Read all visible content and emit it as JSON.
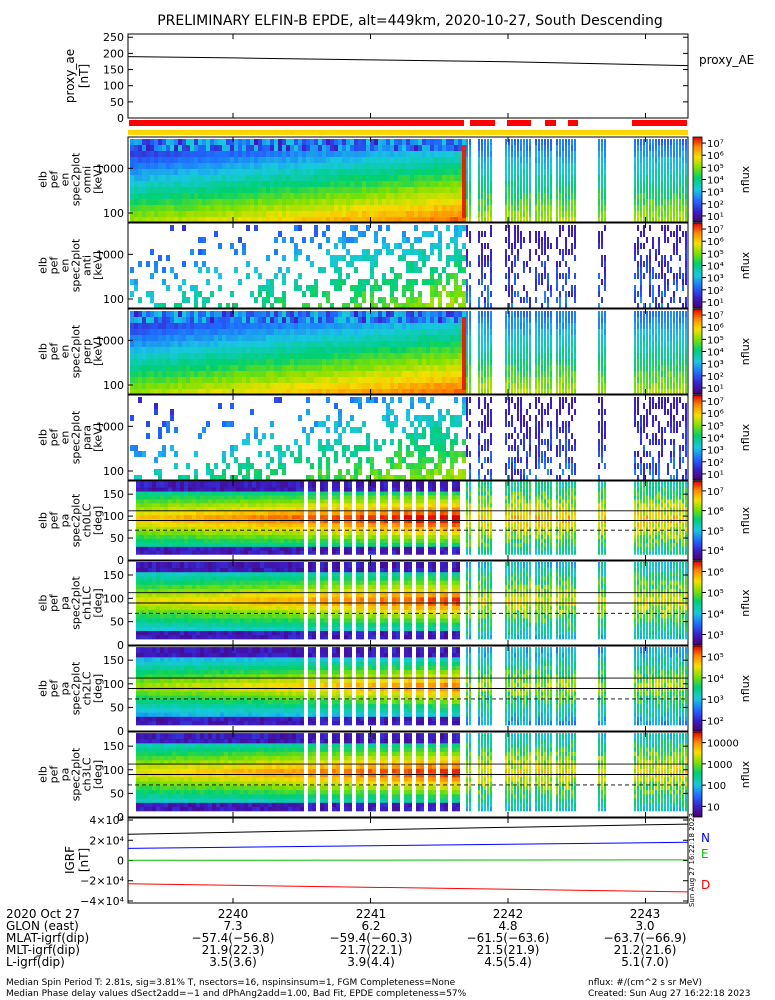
{
  "title": "PRELIMINARY ELFIN-B EPDE, alt=449km, 2020-10-27, South Descending",
  "colors": {
    "axis": "#000000",
    "status_red": "#ff0000",
    "status_yellow": "#ffd700",
    "igrf_n": "#0000ff",
    "igrf_e": "#00c000",
    "igrf_d": "#ff0000",
    "igrf_total": "#000000"
  },
  "chart_data": [
    {
      "type": "line",
      "panel": "proxy_ae",
      "ylabel": "proxy_ae [nT]",
      "series_label": "proxy_AE",
      "yticks": [
        "0",
        "50",
        "100",
        "150",
        "200",
        "250"
      ],
      "ylim": [
        0,
        260
      ],
      "x": [
        "2239.3",
        "2240",
        "2241",
        "2242",
        "2243",
        "2243.4"
      ],
      "values": [
        190,
        186,
        180,
        174,
        165,
        162
      ]
    },
    {
      "type": "heatmap",
      "panel": "elb pef en spec2plot omni",
      "ylabel": [
        "elb",
        "pef",
        "en",
        "spec2plot",
        "omni",
        "[keV]"
      ],
      "yticks": [
        "100",
        "1000"
      ],
      "ylog": true,
      "colorbar_label": "nflux",
      "colorbar_ticks": [
        "10¹",
        "10²",
        "10³",
        "10⁴",
        "10⁵",
        "10⁶",
        "10⁷"
      ]
    },
    {
      "type": "heatmap",
      "panel": "elb pef en spec2plot anti",
      "ylabel": [
        "elb",
        "pef",
        "en",
        "spec2plot",
        "anti",
        "[keV]"
      ],
      "yticks": [
        "100",
        "1000"
      ],
      "ylog": true,
      "colorbar_label": "nflux",
      "colorbar_ticks": [
        "10¹",
        "10²",
        "10³",
        "10⁴",
        "10⁵",
        "10⁶",
        "10⁷"
      ]
    },
    {
      "type": "heatmap",
      "panel": "elb pef en spec2plot perp",
      "ylabel": [
        "elb",
        "pef",
        "en",
        "spec2plot",
        "perp",
        "[keV]"
      ],
      "yticks": [
        "100",
        "1000"
      ],
      "ylog": true,
      "colorbar_label": "nflux",
      "colorbar_ticks": [
        "10¹",
        "10²",
        "10³",
        "10⁴",
        "10⁵",
        "10⁶",
        "10⁷"
      ]
    },
    {
      "type": "heatmap",
      "panel": "elb pef en spec2plot para",
      "ylabel": [
        "elb",
        "pef",
        "en",
        "spec2plot",
        "para",
        "[keV]"
      ],
      "yticks": [
        "100",
        "1000"
      ],
      "ylog": true,
      "colorbar_label": "nflux",
      "colorbar_ticks": [
        "10¹",
        "10²",
        "10³",
        "10⁴",
        "10⁵",
        "10⁶",
        "10⁷"
      ]
    },
    {
      "type": "heatmap",
      "panel": "elb pef pa spec2plot ch0LC",
      "ylabel": [
        "elb",
        "pef",
        "pa",
        "spec2plot",
        "ch0LC",
        "[deg]"
      ],
      "yticks": [
        "0",
        "50",
        "100",
        "150"
      ],
      "ylim": [
        0,
        180
      ],
      "colorbar_label": "nflux",
      "colorbar_ticks": [
        "10⁴",
        "10⁵",
        "10⁶",
        "10⁷"
      ]
    },
    {
      "type": "heatmap",
      "panel": "elb pef pa spec2plot ch1LC",
      "ylabel": [
        "elb",
        "pef",
        "pa",
        "spec2plot",
        "ch1LC",
        "[deg]"
      ],
      "yticks": [
        "0",
        "50",
        "100",
        "150"
      ],
      "ylim": [
        0,
        180
      ],
      "colorbar_label": "nflux",
      "colorbar_ticks": [
        "10³",
        "10⁴",
        "10⁵",
        "10⁶"
      ]
    },
    {
      "type": "heatmap",
      "panel": "elb pef pa spec2plot ch2LC",
      "ylabel": [
        "elb",
        "pef",
        "pa",
        "spec2plot",
        "ch2LC",
        "[deg]"
      ],
      "yticks": [
        "0",
        "50",
        "100",
        "150"
      ],
      "ylim": [
        0,
        180
      ],
      "colorbar_label": "nflux",
      "colorbar_ticks": [
        "10²",
        "10³",
        "10⁴",
        "10⁵"
      ]
    },
    {
      "type": "heatmap",
      "panel": "elb pef pa spec2plot ch3LC",
      "ylabel": [
        "elb",
        "pef",
        "pa",
        "spec2plot",
        "ch3LC",
        "[deg]"
      ],
      "yticks": [
        "0",
        "50",
        "100",
        "150"
      ],
      "ylim": [
        0,
        180
      ],
      "colorbar_label": "nflux",
      "colorbar_ticks": [
        "10",
        "100",
        "1000",
        "10000"
      ]
    },
    {
      "type": "line",
      "panel": "IGRF",
      "ylabel": "IGRF [nT]",
      "yticks": [
        "−4×10⁴",
        "−2×10⁴",
        "0",
        "2×10⁴",
        "4×10⁴"
      ],
      "ylim": [
        -42000,
        42000
      ],
      "x": [
        "2239.3",
        "2243.4"
      ],
      "series": [
        {
          "name": "N",
          "values": [
            12000,
            18000
          ]
        },
        {
          "name": "E",
          "values": [
            200,
            600
          ]
        },
        {
          "name": "D",
          "values": [
            -23000,
            -31000
          ]
        },
        {
          "name": "",
          "values": [
            26000,
            36000
          ]
        }
      ],
      "side_text": "Sun Aug 27 16:22:18 2023"
    }
  ],
  "footer": {
    "date": "2020 Oct 27",
    "row_labels": [
      "GLON (east)",
      "MLAT-igrf(dip)",
      "MLT-igrf(dip)",
      "L-igrf(dip)"
    ],
    "columns": [
      {
        "time": "2240",
        "rows": [
          "7.3",
          "−57.4(−56.8)",
          "21.9(22.3)",
          "3.5(3.6)"
        ]
      },
      {
        "time": "2241",
        "rows": [
          "6.2",
          "−59.4(−60.3)",
          "21.7(22.1)",
          "3.9(4.4)"
        ]
      },
      {
        "time": "2242",
        "rows": [
          "4.8",
          "−61.5(−63.6)",
          "21.5(21.9)",
          "4.5(5.4)"
        ]
      },
      {
        "time": "2243",
        "rows": [
          "3.0",
          "−63.7(−66.9)",
          "21.2(21.6)",
          "5.1(7.0)"
        ]
      }
    ],
    "note1": "Median Spin Period T: 2.81s, sig=3.81% T, nsectors=16, nspinsinsum=1, FGM Completeness=None",
    "note2": "Median Phase delay values dSect2add=−1 and dPhAng2add=1.00, Bad Fit, EPDE completeness=57%",
    "units": "nflux: #/(cm^2 s sr MeV)",
    "created": "Created: Sun Aug 27 16:22:18 2023"
  }
}
